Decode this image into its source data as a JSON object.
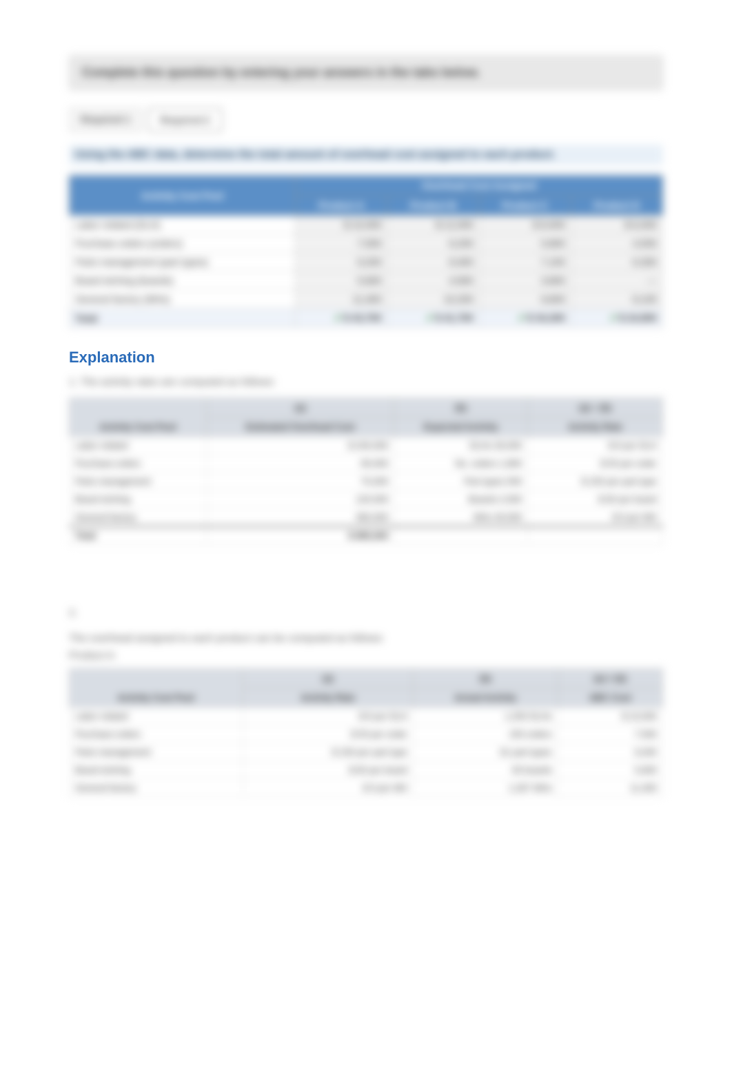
{
  "instruction": "Complete this question by entering your answers in the tabs below.",
  "tabs": {
    "t1": "Required 1",
    "t2": "Required 2"
  },
  "question": "Using the ABC data, determine the total amount of overhead cost assigned to each product.",
  "table1": {
    "super": "Overhead Cost Assigned",
    "h0": "Activity Cost Pool",
    "h1": "Product A",
    "h2": "Product B",
    "h3": "Product C",
    "h4": "Product D",
    "rows": [
      {
        "label": "Labor related (DLH)",
        "a": "$ 10,000",
        "b": "$ 12,000",
        "c": "$ 8,000",
        "d": "$ 6,000"
      },
      {
        "label": "Purchase orders (orders)",
        "a": "7,500",
        "b": "6,200",
        "c": "5,800",
        "d": "4,500"
      },
      {
        "label": "Parts management (part types)",
        "a": "9,200",
        "b": "8,400",
        "c": "7,100",
        "d": "6,300"
      },
      {
        "label": "Board etching (boards)",
        "a": "5,600",
        "b": "4,900",
        "c": "3,800",
        "d": "—"
      },
      {
        "label": "General factory (MHs)",
        "a": "11,400",
        "b": "10,200",
        "c": "9,600",
        "d": "8,100"
      },
      {
        "label": "Total",
        "a": "$ 43,700",
        "b": "$ 41,700",
        "c": "$ 34,300",
        "d": "$ 24,900"
      }
    ]
  },
  "explanation_heading": "Explanation",
  "exp1": "1. The activity rates are computed as follows:",
  "table2": {
    "h0": "Activity Cost Pool",
    "h1a": "(a)",
    "h1b": "Estimated Overhead Cost",
    "h2a": "(b)",
    "h2b": "Expected Activity",
    "h3a": "(a) ÷ (b)",
    "h3b": "Activity Rate",
    "rows": [
      {
        "label": "Labor related",
        "cost": "$ 240,000",
        "act": "DLHs  30,000",
        "rate": "$ 8 per DLH"
      },
      {
        "label": "Purchase orders",
        "cost": "90,000",
        "act": "No. orders  1,800",
        "rate": "$ 50 per order"
      },
      {
        "label": "Parts management",
        "cost": "75,000",
        "act": "Part types  500",
        "rate": "$ 150 per part type"
      },
      {
        "label": "Board etching",
        "cost": "120,000",
        "act": "Boards  2,000",
        "rate": "$ 60 per board"
      },
      {
        "label": "General factory",
        "cost": "360,000",
        "act": "MHs  40,000",
        "rate": "$ 9 per MH"
      },
      {
        "label": "Total",
        "cost": "$ 885,000",
        "act": "",
        "rate": ""
      }
    ]
  },
  "exp2_a": "2.",
  "exp2_b": "The overhead assigned to each product can be computed as follows:",
  "product_a": "Product A:",
  "table3": {
    "h0": "Activity Cost Pool",
    "h1a": "(a)",
    "h1b": "Activity Rate",
    "h2a": "(b)",
    "h2b": "Actual Activity",
    "h3a": "(a) × (b)",
    "h3b": "ABC Cost",
    "rows": [
      {
        "label": "Labor related",
        "rate": "$ 8 per DLH",
        "act": "1,250 DLHs",
        "cost": "$ 10,000"
      },
      {
        "label": "Purchase orders",
        "rate": "$ 50 per order",
        "act": "150 orders",
        "cost": "7,500"
      },
      {
        "label": "Parts management",
        "rate": "$ 150 per part type",
        "act": "61 part types",
        "cost": "9,200"
      },
      {
        "label": "Board etching",
        "rate": "$ 60 per board",
        "act": "93 boards",
        "cost": "5,600"
      },
      {
        "label": "General factory",
        "rate": "$ 9 per MH",
        "act": "1,267 MHs",
        "cost": "11,400"
      }
    ]
  }
}
